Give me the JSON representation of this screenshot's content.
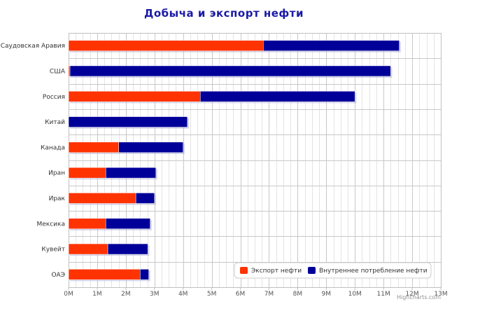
{
  "chart_data": {
    "type": "bar",
    "orientation": "horizontal",
    "stacked": true,
    "title": "Добыча и экспорт нефти",
    "categories": [
      "Саудовская Аравия",
      "США",
      "Россия",
      "Китай",
      "Канада",
      "Иран",
      "Ирак",
      "Мексика",
      "Кувейт",
      "ОАЭ"
    ],
    "series": [
      {
        "name": "Экспорт нефти",
        "color": "#ff3300",
        "values": [
          6.8,
          0.05,
          4.6,
          0.0,
          1.75,
          1.3,
          2.35,
          1.3,
          1.37,
          2.5
        ]
      },
      {
        "name": "Внутреннее потребление нефти",
        "color": "#000099",
        "values": [
          4.75,
          11.2,
          5.4,
          4.15,
          2.25,
          1.75,
          0.65,
          1.55,
          1.4,
          0.3
        ]
      }
    ],
    "x_axis": {
      "min": 0,
      "max": 13,
      "ticks": [
        0,
        1,
        2,
        3,
        4,
        5,
        6,
        7,
        8,
        9,
        10,
        11,
        12,
        13
      ],
      "tick_labels": [
        "0M",
        "1M",
        "2M",
        "3M",
        "4M",
        "5M",
        "6M",
        "7M",
        "8M",
        "9M",
        "10M",
        "11M",
        "12M",
        "13M"
      ]
    },
    "grid": true,
    "legend_position": "bottom-right",
    "credits": "Highcharts.com"
  }
}
